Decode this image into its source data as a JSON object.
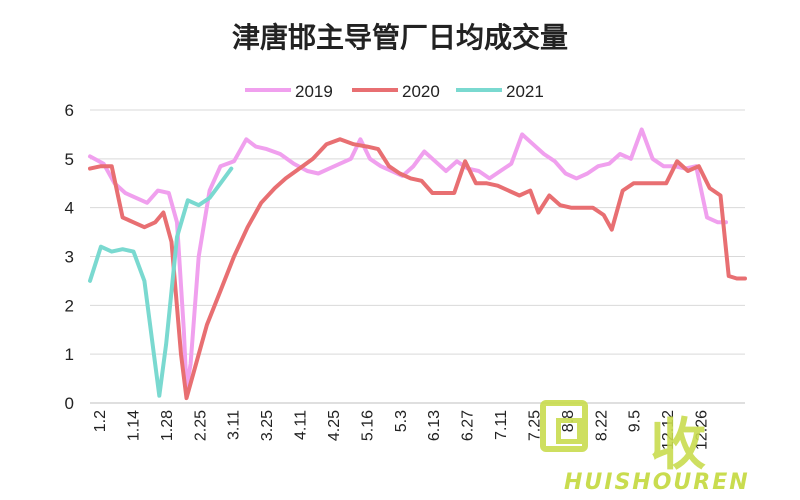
{
  "chart_data": {
    "type": "line",
    "title": "津唐邯主导管厂日均成交量",
    "categories": [
      "1.2",
      "1.14",
      "1.28",
      "2.25",
      "3.11",
      "3.25",
      "4.11",
      "4.25",
      "5.16",
      "5.3",
      "6.13",
      "6.27",
      "7.11",
      "7.25",
      "8.8",
      "8.22",
      "9.5",
      "12.12",
      "12.26"
    ],
    "ylim": [
      0,
      6
    ],
    "yticks": [
      "0",
      "1",
      "2",
      "3",
      "4",
      "5",
      "6"
    ],
    "grid": true,
    "legend_position": "top",
    "series": [
      {
        "name": "2019",
        "color": "#f0a0ee",
        "points": [
          [
            0,
            5.05
          ],
          [
            0.5,
            4.9
          ],
          [
            0.9,
            4.5
          ],
          [
            1.3,
            4.3
          ],
          [
            1.7,
            4.2
          ],
          [
            2.1,
            4.1
          ],
          [
            2.5,
            4.35
          ],
          [
            2.9,
            4.3
          ],
          [
            3.2,
            3.7
          ],
          [
            3.45,
            1.5
          ],
          [
            3.55,
            0.3
          ],
          [
            3.7,
            0.8
          ],
          [
            4.0,
            3.0
          ],
          [
            4.4,
            4.35
          ],
          [
            4.8,
            4.85
          ],
          [
            5.3,
            4.95
          ],
          [
            5.75,
            5.4
          ],
          [
            6.1,
            5.25
          ],
          [
            6.5,
            5.2
          ],
          [
            7.0,
            5.1
          ],
          [
            7.5,
            4.9
          ],
          [
            8.0,
            4.75
          ],
          [
            8.4,
            4.7
          ],
          [
            8.8,
            4.8
          ],
          [
            9.2,
            4.9
          ],
          [
            9.6,
            5.0
          ],
          [
            9.95,
            5.4
          ],
          [
            10.3,
            5.0
          ],
          [
            10.7,
            4.85
          ],
          [
            11.1,
            4.75
          ],
          [
            11.5,
            4.65
          ],
          [
            11.9,
            4.85
          ],
          [
            12.3,
            5.15
          ],
          [
            12.7,
            4.95
          ],
          [
            13.1,
            4.75
          ],
          [
            13.5,
            4.95
          ],
          [
            13.9,
            4.8
          ],
          [
            14.3,
            4.75
          ],
          [
            14.7,
            4.6
          ],
          [
            15.1,
            4.75
          ],
          [
            15.5,
            4.9
          ],
          [
            15.9,
            5.5
          ],
          [
            16.3,
            5.3
          ],
          [
            16.7,
            5.1
          ],
          [
            17.1,
            4.95
          ],
          [
            17.5,
            4.7
          ],
          [
            17.9,
            4.6
          ],
          [
            18.3,
            4.7
          ],
          [
            18.7,
            4.85
          ],
          [
            19.1,
            4.9
          ],
          [
            19.5,
            5.1
          ],
          [
            19.9,
            5.0
          ],
          [
            20.3,
            5.6
          ],
          [
            20.7,
            5.0
          ],
          [
            21.1,
            4.85
          ],
          [
            21.5,
            4.85
          ],
          [
            21.9,
            4.8
          ],
          [
            22.3,
            4.85
          ],
          [
            22.7,
            3.8
          ],
          [
            23.1,
            3.7
          ],
          [
            23.4,
            3.7
          ]
        ]
      },
      {
        "name": "2020",
        "color": "#e86f72",
        "points": [
          [
            0,
            4.8
          ],
          [
            0.4,
            4.85
          ],
          [
            0.8,
            4.85
          ],
          [
            1.2,
            3.8
          ],
          [
            1.6,
            3.7
          ],
          [
            2.0,
            3.6
          ],
          [
            2.4,
            3.7
          ],
          [
            2.7,
            3.9
          ],
          [
            3.0,
            3.3
          ],
          [
            3.35,
            1.0
          ],
          [
            3.55,
            0.1
          ],
          [
            3.8,
            0.6
          ],
          [
            4.3,
            1.6
          ],
          [
            4.8,
            2.3
          ],
          [
            5.3,
            3.0
          ],
          [
            5.8,
            3.6
          ],
          [
            6.3,
            4.1
          ],
          [
            6.8,
            4.4
          ],
          [
            7.2,
            4.6
          ],
          [
            7.7,
            4.8
          ],
          [
            8.2,
            5.0
          ],
          [
            8.7,
            5.3
          ],
          [
            9.2,
            5.4
          ],
          [
            9.7,
            5.3
          ],
          [
            10.2,
            5.25
          ],
          [
            10.6,
            5.2
          ],
          [
            11.0,
            4.85
          ],
          [
            11.4,
            4.7
          ],
          [
            11.8,
            4.6
          ],
          [
            12.2,
            4.55
          ],
          [
            12.6,
            4.3
          ],
          [
            13.0,
            4.3
          ],
          [
            13.4,
            4.3
          ],
          [
            13.8,
            4.95
          ],
          [
            14.2,
            4.5
          ],
          [
            14.6,
            4.5
          ],
          [
            15.0,
            4.45
          ],
          [
            15.4,
            4.35
          ],
          [
            15.8,
            4.25
          ],
          [
            16.2,
            4.35
          ],
          [
            16.5,
            3.9
          ],
          [
            16.9,
            4.25
          ],
          [
            17.3,
            4.05
          ],
          [
            17.7,
            4.0
          ],
          [
            18.1,
            4.0
          ],
          [
            18.5,
            4.0
          ],
          [
            18.9,
            3.85
          ],
          [
            19.2,
            3.55
          ],
          [
            19.6,
            4.35
          ],
          [
            20.0,
            4.5
          ],
          [
            20.4,
            4.5
          ],
          [
            20.8,
            4.5
          ],
          [
            21.2,
            4.5
          ],
          [
            21.6,
            4.95
          ],
          [
            22.0,
            4.75
          ],
          [
            22.4,
            4.85
          ],
          [
            22.8,
            4.4
          ],
          [
            23.2,
            4.25
          ],
          [
            23.5,
            2.6
          ],
          [
            23.8,
            2.55
          ],
          [
            24.1,
            2.55
          ]
        ]
      },
      {
        "name": "2021",
        "color": "#7ad9d0",
        "points": [
          [
            0,
            2.5
          ],
          [
            0.4,
            3.2
          ],
          [
            0.8,
            3.1
          ],
          [
            1.2,
            3.15
          ],
          [
            1.6,
            3.1
          ],
          [
            2.0,
            2.5
          ],
          [
            2.35,
            1.0
          ],
          [
            2.55,
            0.15
          ],
          [
            2.8,
            1.2
          ],
          [
            3.2,
            3.4
          ],
          [
            3.6,
            4.15
          ],
          [
            4.0,
            4.05
          ],
          [
            4.4,
            4.2
          ],
          [
            4.8,
            4.5
          ],
          [
            5.2,
            4.8
          ]
        ]
      }
    ]
  },
  "watermark": {
    "char": "收",
    "text": "HUISHOUREN"
  }
}
